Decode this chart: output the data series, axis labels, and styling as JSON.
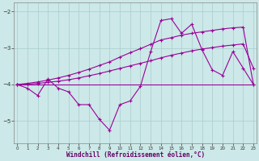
{
  "xlabel": "Windchill (Refroidissement éolien,°C)",
  "x": [
    0,
    1,
    2,
    3,
    4,
    5,
    6,
    7,
    8,
    9,
    10,
    11,
    12,
    13,
    14,
    15,
    16,
    17,
    18,
    19,
    20,
    21,
    22,
    23
  ],
  "y_jagged": [
    -4.0,
    -4.1,
    -4.3,
    -3.85,
    -4.1,
    -4.2,
    -4.55,
    -4.55,
    -4.95,
    -5.25,
    -4.55,
    -4.45,
    -4.05,
    -3.1,
    -2.25,
    -2.2,
    -2.6,
    -2.35,
    -3.05,
    -3.6,
    -3.75,
    -3.1,
    -3.55,
    -4.0
  ],
  "y_upper": [
    -4.0,
    -3.97,
    -3.93,
    -3.88,
    -3.82,
    -3.75,
    -3.67,
    -3.58,
    -3.48,
    -3.38,
    -3.25,
    -3.13,
    -3.02,
    -2.9,
    -2.78,
    -2.72,
    -2.65,
    -2.6,
    -2.56,
    -2.52,
    -2.48,
    -2.45,
    -2.43,
    -4.0
  ],
  "y_mid": [
    -4.0,
    -3.99,
    -3.97,
    -3.94,
    -3.91,
    -3.87,
    -3.82,
    -3.76,
    -3.7,
    -3.63,
    -3.56,
    -3.49,
    -3.42,
    -3.35,
    -3.27,
    -3.2,
    -3.14,
    -3.08,
    -3.03,
    -2.99,
    -2.95,
    -2.92,
    -2.89,
    -3.55
  ],
  "y_flat": [
    -4.0,
    -4.0,
    -4.0,
    -4.0,
    -4.0,
    -4.0,
    -4.0,
    -4.0,
    -4.0,
    -4.0,
    -4.0,
    -4.0,
    -4.0,
    -4.0,
    -4.0,
    -4.0,
    -4.0,
    -4.0,
    -4.0,
    -4.0,
    -4.0,
    -4.0,
    -4.0,
    -4.0
  ],
  "bg_color": "#cce8e8",
  "line_color": "#990099",
  "grid_color": "#aacccc",
  "ylim": [
    -5.6,
    -1.75
  ],
  "yticks": [
    -5,
    -4,
    -3,
    -2
  ],
  "xlim": [
    -0.5,
    23.5
  ]
}
